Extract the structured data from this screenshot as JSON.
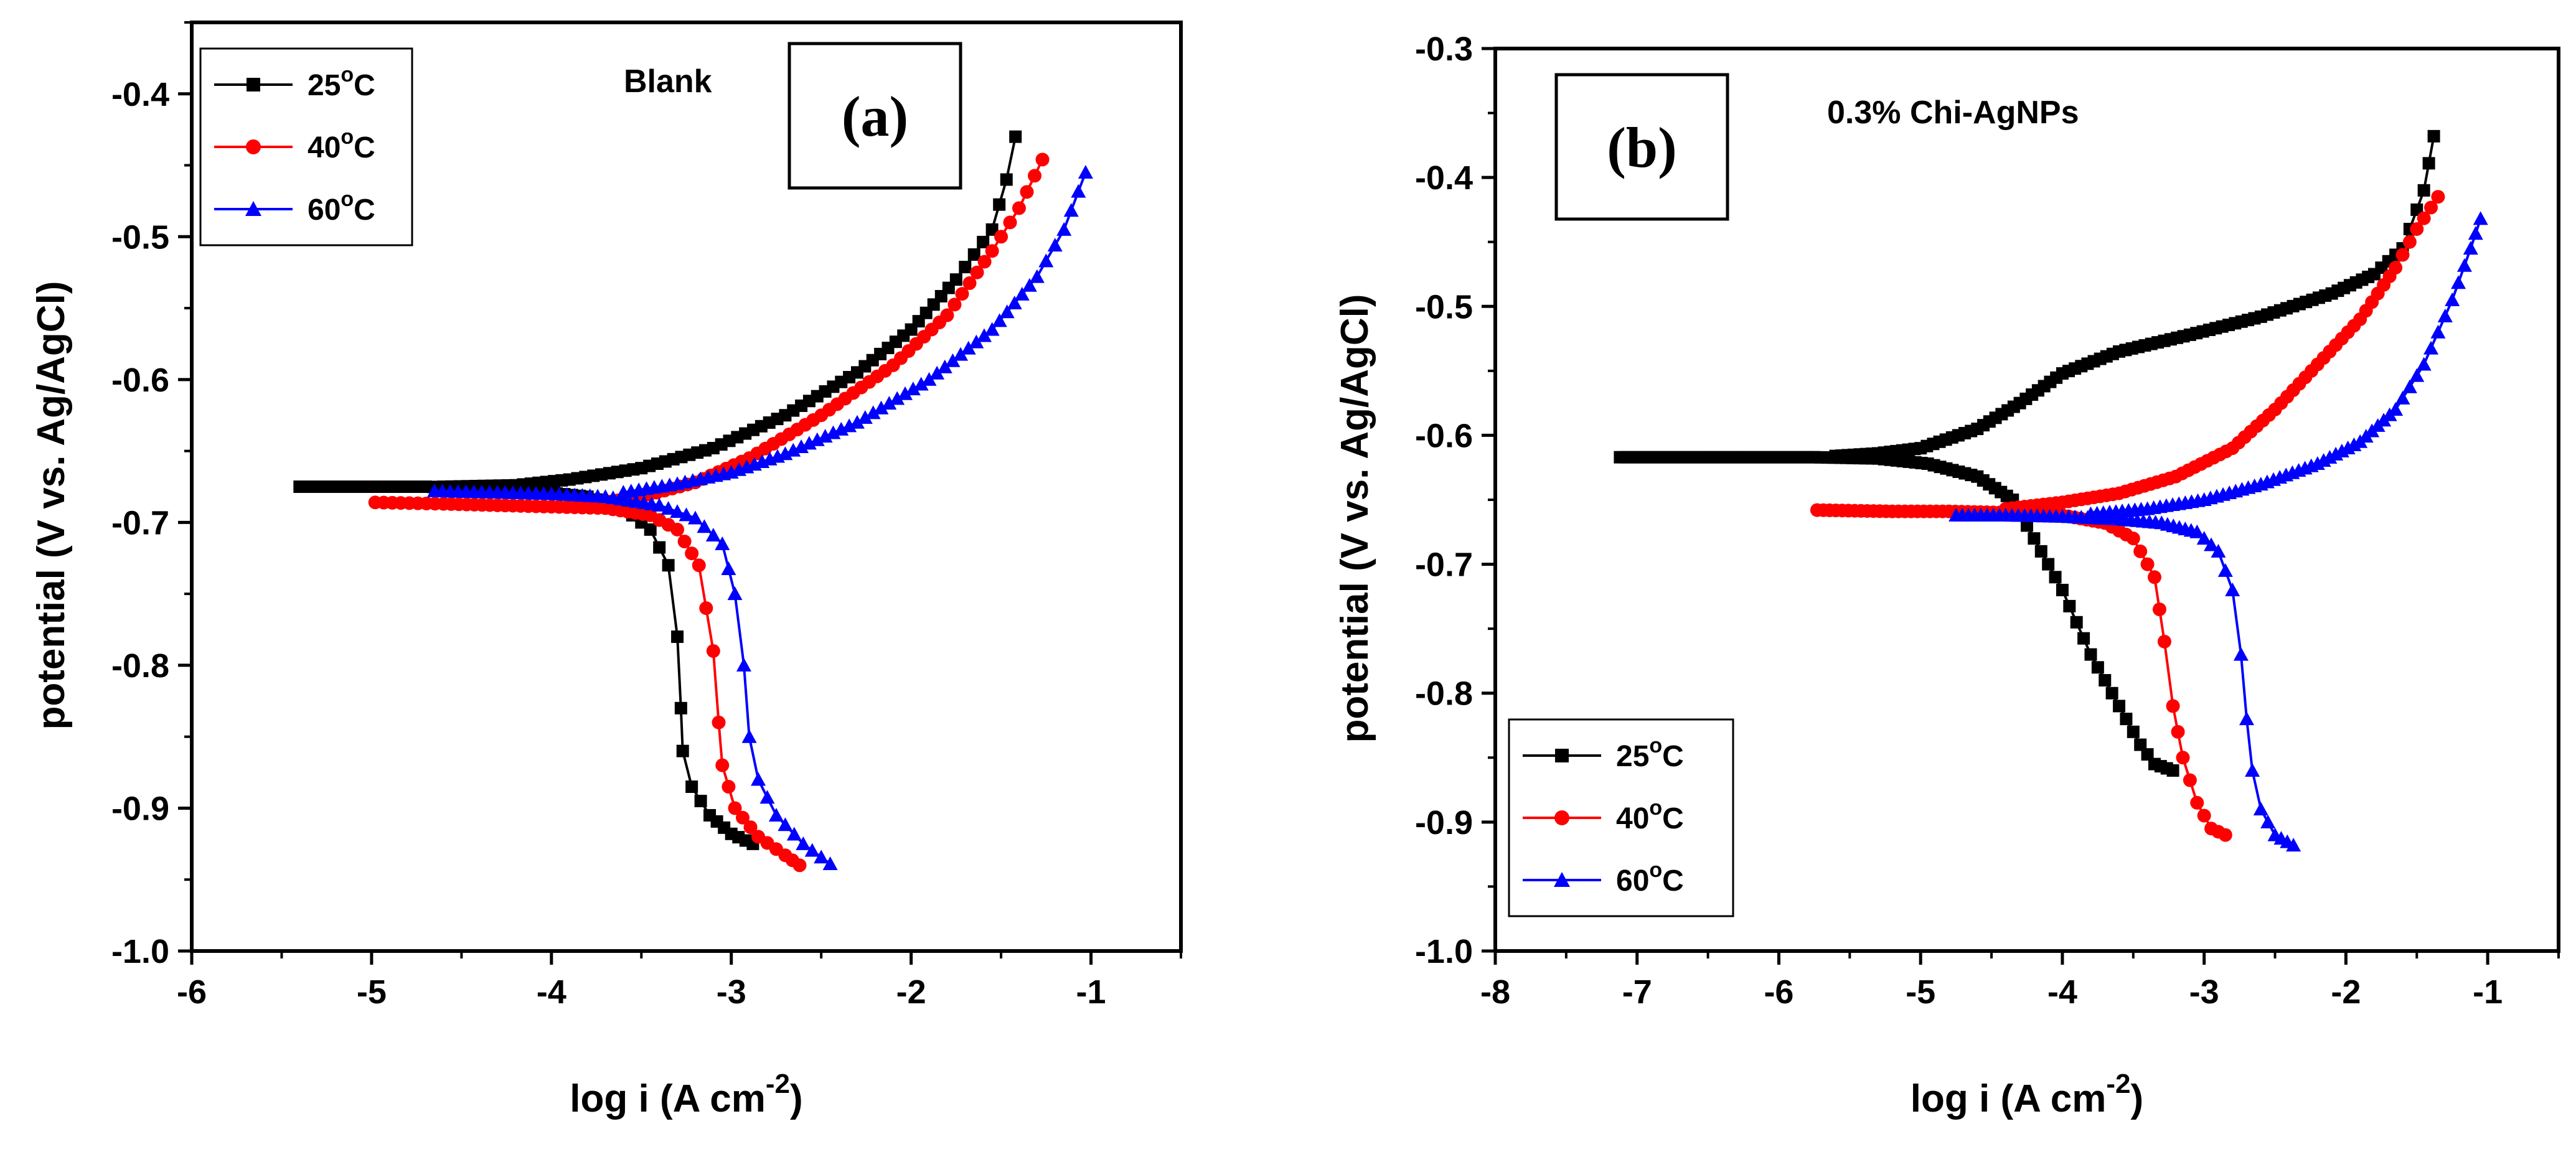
{
  "chart_data": [
    {
      "type": "line",
      "panel_label": "(a)",
      "annotation": "Blank",
      "xlabel": "log i (A cm-2)",
      "xlabel_main": "log i (A cm",
      "xlabel_sup": "-2",
      "xlabel_end": ")",
      "ylabel": "potential (V vs. Ag/AgCl)",
      "xlim": [
        -6,
        -0.5
      ],
      "ylim": [
        -1.0,
        -0.35
      ],
      "xticks": [
        -6,
        -5,
        -4,
        -3,
        -2,
        -1
      ],
      "xtick_labels": [
        "-6",
        "-5",
        "-4",
        "-3",
        "-2",
        "-1"
      ],
      "yticks": [
        -1.0,
        -0.9,
        -0.8,
        -0.7,
        -0.6,
        -0.5,
        -0.4
      ],
      "ytick_labels": [
        "-1.0",
        "-0.9",
        "-0.8",
        "-0.7",
        "-0.6",
        "-0.5",
        "-0.4"
      ],
      "legend_position": "top-left",
      "series": [
        {
          "name": "25oC",
          "label_main": "25",
          "label_sup": "o",
          "label_end": "C",
          "color": "#000000",
          "marker": "square",
          "cathodic": [
            [
              -5.4,
              -0.675
            ],
            [
              -5.0,
              -0.675
            ],
            [
              -4.7,
              -0.675
            ],
            [
              -4.4,
              -0.676
            ],
            [
              -4.1,
              -0.678
            ],
            [
              -3.8,
              -0.682
            ],
            [
              -3.6,
              -0.69
            ],
            [
              -3.45,
              -0.705
            ],
            [
              -3.35,
              -0.73
            ],
            [
              -3.3,
              -0.78
            ],
            [
              -3.28,
              -0.83
            ],
            [
              -3.27,
              -0.86
            ],
            [
              -3.22,
              -0.885
            ],
            [
              -3.12,
              -0.905
            ],
            [
              -3.0,
              -0.918
            ],
            [
              -2.88,
              -0.925
            ]
          ],
          "anodic": [
            [
              -4.6,
              -0.675
            ],
            [
              -4.2,
              -0.674
            ],
            [
              -3.9,
              -0.67
            ],
            [
              -3.5,
              -0.662
            ],
            [
              -3.1,
              -0.648
            ],
            [
              -2.7,
              -0.625
            ],
            [
              -2.3,
              -0.595
            ],
            [
              -2.0,
              -0.565
            ],
            [
              -1.75,
              -0.53
            ],
            [
              -1.55,
              -0.495
            ],
            [
              -1.47,
              -0.46
            ],
            [
              -1.42,
              -0.43
            ]
          ]
        },
        {
          "name": "40oC",
          "label_main": "40",
          "label_sup": "o",
          "label_end": "C",
          "color": "#ff0000",
          "marker": "circle",
          "cathodic": [
            [
              -4.98,
              -0.686
            ],
            [
              -4.6,
              -0.687
            ],
            [
              -4.3,
              -0.688
            ],
            [
              -4.0,
              -0.689
            ],
            [
              -3.7,
              -0.69
            ],
            [
              -3.45,
              -0.695
            ],
            [
              -3.3,
              -0.705
            ],
            [
              -3.18,
              -0.73
            ],
            [
              -3.1,
              -0.79
            ],
            [
              -3.07,
              -0.84
            ],
            [
              -3.05,
              -0.87
            ],
            [
              -2.98,
              -0.9
            ],
            [
              -2.85,
              -0.92
            ],
            [
              -2.7,
              -0.933
            ],
            [
              -2.62,
              -0.94
            ]
          ],
          "anodic": [
            [
              -3.8,
              -0.688
            ],
            [
              -3.5,
              -0.682
            ],
            [
              -3.2,
              -0.672
            ],
            [
              -2.9,
              -0.655
            ],
            [
              -2.5,
              -0.625
            ],
            [
              -2.1,
              -0.59
            ],
            [
              -1.8,
              -0.555
            ],
            [
              -1.55,
              -0.51
            ],
            [
              -1.4,
              -0.48
            ],
            [
              -1.27,
              -0.446
            ]
          ]
        },
        {
          "name": "60oC",
          "label_main": "60",
          "label_sup": "o",
          "label_end": "C",
          "color": "#0000ff",
          "marker": "triangle",
          "cathodic": [
            [
              -4.65,
              -0.678
            ],
            [
              -4.3,
              -0.679
            ],
            [
              -4.0,
              -0.68
            ],
            [
              -3.7,
              -0.682
            ],
            [
              -3.4,
              -0.688
            ],
            [
              -3.2,
              -0.697
            ],
            [
              -3.05,
              -0.715
            ],
            [
              -2.98,
              -0.75
            ],
            [
              -2.93,
              -0.8
            ],
            [
              -2.9,
              -0.85
            ],
            [
              -2.85,
              -0.88
            ],
            [
              -2.75,
              -0.905
            ],
            [
              -2.6,
              -0.925
            ],
            [
              -2.45,
              -0.939
            ]
          ],
          "anodic": [
            [
              -3.6,
              -0.679
            ],
            [
              -3.3,
              -0.673
            ],
            [
              -3.0,
              -0.665
            ],
            [
              -2.7,
              -0.652
            ],
            [
              -2.3,
              -0.63
            ],
            [
              -1.9,
              -0.6
            ],
            [
              -1.55,
              -0.565
            ],
            [
              -1.3,
              -0.528
            ],
            [
              -1.15,
              -0.495
            ],
            [
              -1.03,
              -0.455
            ]
          ]
        }
      ]
    },
    {
      "type": "line",
      "panel_label": "(b)",
      "annotation": "0.3% Chi-AgNPs",
      "xlabel": "log i (A cm-2)",
      "xlabel_main": "log i (A cm",
      "xlabel_sup": "-2",
      "xlabel_end": ")",
      "ylabel": "potential (V vs. Ag/AgCl)",
      "xlim": [
        -8,
        -0.5
      ],
      "ylim": [
        -1.0,
        -0.3
      ],
      "xticks": [
        -8,
        -7,
        -6,
        -5,
        -4,
        -3,
        -2,
        -1
      ],
      "xtick_labels": [
        "-8",
        "-7",
        "-6",
        "-5",
        "-4",
        "-3",
        "-2",
        "-1"
      ],
      "yticks": [
        -1.0,
        -0.9,
        -0.8,
        -0.7,
        -0.6,
        -0.5,
        -0.4,
        -0.3
      ],
      "ytick_labels": [
        "-1.0",
        "-0.9",
        "-0.8",
        "-0.7",
        "-0.6",
        "-0.5",
        "-0.4",
        "-0.3"
      ],
      "legend_position": "bottom-left",
      "series": [
        {
          "name": "25oC",
          "label_main": "25",
          "label_sup": "o",
          "label_end": "C",
          "color": "#000000",
          "marker": "square",
          "cathodic": [
            [
              -7.12,
              -0.617
            ],
            [
              -6.5,
              -0.617
            ],
            [
              -5.75,
              -0.617
            ],
            [
              -5.3,
              -0.618
            ],
            [
              -4.95,
              -0.622
            ],
            [
              -4.6,
              -0.632
            ],
            [
              -4.35,
              -0.65
            ],
            [
              -4.2,
              -0.68
            ],
            [
              -4.0,
              -0.72
            ],
            [
              -3.8,
              -0.77
            ],
            [
              -3.6,
              -0.81
            ],
            [
              -3.45,
              -0.84
            ],
            [
              -3.35,
              -0.855
            ],
            [
              -3.22,
              -0.86
            ]
          ],
          "anodic": [
            [
              -5.6,
              -0.616
            ],
            [
              -5.3,
              -0.614
            ],
            [
              -5.0,
              -0.61
            ],
            [
              -4.6,
              -0.595
            ],
            [
              -4.3,
              -0.575
            ],
            [
              -4.0,
              -0.552
            ],
            [
              -3.6,
              -0.535
            ],
            [
              -3.1,
              -0.522
            ],
            [
              -2.6,
              -0.508
            ],
            [
              -2.1,
              -0.49
            ],
            [
              -1.8,
              -0.475
            ],
            [
              -1.6,
              -0.455
            ],
            [
              -1.45,
              -0.41
            ],
            [
              -1.38,
              -0.368
            ]
          ]
        },
        {
          "name": "40oC",
          "label_main": "40",
          "label_sup": "o",
          "label_end": "C",
          "color": "#ff0000",
          "marker": "circle",
          "cathodic": [
            [
              -5.73,
              -0.658
            ],
            [
              -5.2,
              -0.659
            ],
            [
              -4.8,
              -0.659
            ],
            [
              -4.4,
              -0.66
            ],
            [
              -4.0,
              -0.662
            ],
            [
              -3.7,
              -0.668
            ],
            [
              -3.5,
              -0.68
            ],
            [
              -3.35,
              -0.71
            ],
            [
              -3.28,
              -0.76
            ],
            [
              -3.22,
              -0.81
            ],
            [
              -3.15,
              -0.85
            ],
            [
              -3.05,
              -0.885
            ],
            [
              -2.95,
              -0.905
            ],
            [
              -2.85,
              -0.91
            ]
          ],
          "anodic": [
            [
              -4.4,
              -0.657
            ],
            [
              -4.0,
              -0.652
            ],
            [
              -3.6,
              -0.645
            ],
            [
              -3.2,
              -0.632
            ],
            [
              -2.8,
              -0.61
            ],
            [
              -2.5,
              -0.58
            ],
            [
              -2.2,
              -0.545
            ],
            [
              -1.9,
              -0.51
            ],
            [
              -1.65,
              -0.47
            ],
            [
              -1.5,
              -0.44
            ],
            [
              -1.35,
              -0.415
            ]
          ]
        },
        {
          "name": "60oC",
          "label_main": "60",
          "label_sup": "o",
          "label_end": "C",
          "color": "#0000ff",
          "marker": "triangle",
          "cathodic": [
            [
              -4.75,
              -0.662
            ],
            [
              -4.4,
              -0.662
            ],
            [
              -4.0,
              -0.663
            ],
            [
              -3.6,
              -0.665
            ],
            [
              -3.3,
              -0.668
            ],
            [
              -3.05,
              -0.675
            ],
            [
              -2.9,
              -0.69
            ],
            [
              -2.8,
              -0.72
            ],
            [
              -2.74,
              -0.77
            ],
            [
              -2.7,
              -0.82
            ],
            [
              -2.66,
              -0.86
            ],
            [
              -2.6,
              -0.89
            ],
            [
              -2.5,
              -0.91
            ],
            [
              -2.37,
              -0.918
            ]
          ],
          "anodic": [
            [
              -3.8,
              -0.661
            ],
            [
              -3.4,
              -0.657
            ],
            [
              -3.0,
              -0.65
            ],
            [
              -2.6,
              -0.638
            ],
            [
              -2.2,
              -0.622
            ],
            [
              -1.9,
              -0.605
            ],
            [
              -1.65,
              -0.58
            ],
            [
              -1.45,
              -0.545
            ],
            [
              -1.25,
              -0.495
            ],
            [
              -1.12,
              -0.455
            ],
            [
              -1.05,
              -0.432
            ]
          ]
        }
      ]
    }
  ]
}
